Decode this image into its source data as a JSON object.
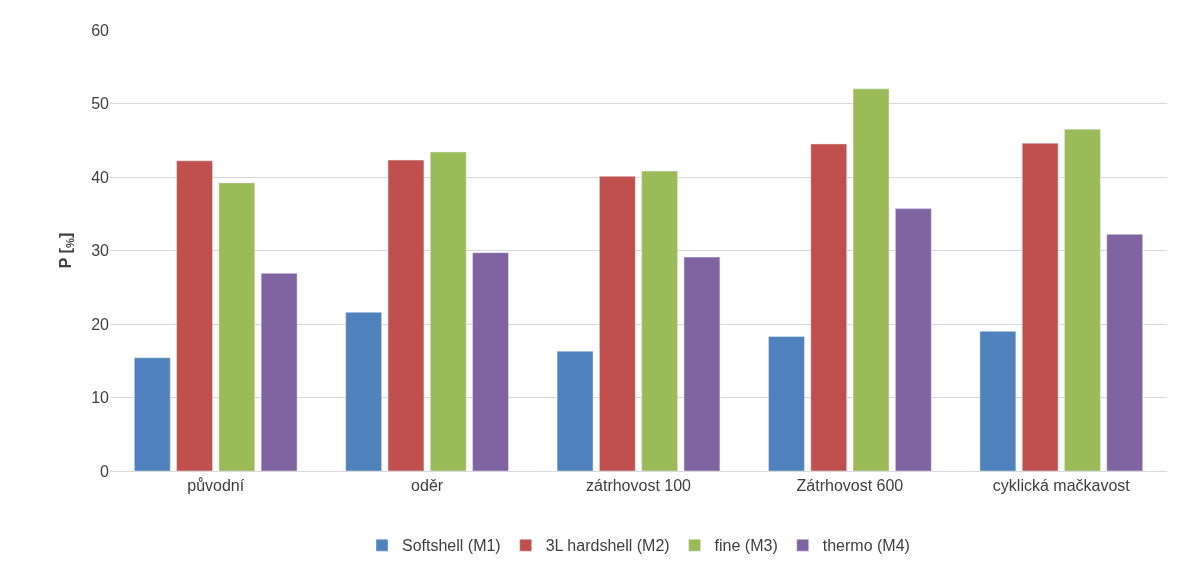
{
  "chart_data": {
    "type": "bar",
    "ylabel": "P [$_{%}$]",
    "categories": [
      "původní",
      "oděr",
      "zátrhovost 100",
      "Zátrhovost 600",
      "cyklická mačkavost"
    ],
    "series": [
      {
        "name": "Softshell (M1)",
        "color": "#4f81bd",
        "values": [
          15.4,
          21.6,
          16.3,
          18.3,
          19.0
        ]
      },
      {
        "name": "3L hardshell (M2)",
        "color": "#c0504d",
        "values": [
          42.2,
          42.3,
          40.1,
          44.5,
          44.6
        ]
      },
      {
        "name": "fine (M3)",
        "color": "#9bbb59",
        "values": [
          39.2,
          43.4,
          40.8,
          52.0,
          46.5
        ]
      },
      {
        "name": "thermo (M4)",
        "color": "#8064a2",
        "values": [
          26.9,
          29.7,
          29.1,
          35.7,
          32.2
        ]
      }
    ],
    "ylim": [
      0,
      60
    ],
    "yticks": [
      0,
      10,
      20,
      30,
      40,
      50,
      60
    ],
    "grid": "y",
    "legend": "bottom"
  }
}
